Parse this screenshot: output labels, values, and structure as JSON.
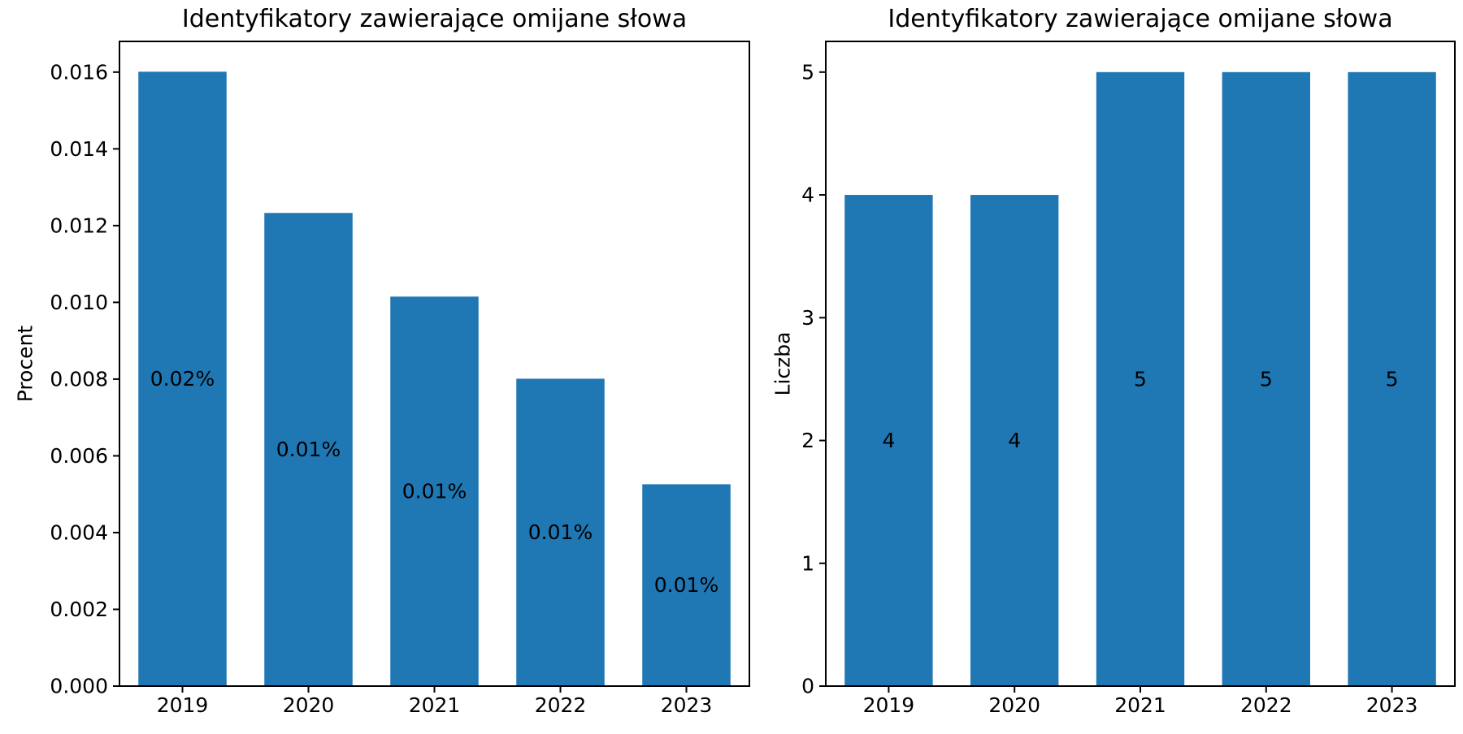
{
  "chart_data": [
    {
      "type": "bar",
      "title": "Identyfikatory zawierające omijane słowa",
      "xlabel": "",
      "ylabel": "Procent",
      "categories": [
        "2019",
        "2020",
        "2021",
        "2022",
        "2023"
      ],
      "values": [
        0.01601,
        0.01233,
        0.01015,
        0.00801,
        0.00526
      ],
      "bar_labels": [
        "0.02%",
        "0.01%",
        "0.01%",
        "0.01%",
        "0.01%"
      ],
      "ylim": [
        0,
        0.0168
      ],
      "yticks": [
        "0.000",
        "0.002",
        "0.004",
        "0.006",
        "0.008",
        "0.010",
        "0.012",
        "0.014",
        "0.016"
      ],
      "ytick_values": [
        0,
        0.002,
        0.004,
        0.006,
        0.008,
        0.01,
        0.012,
        0.014,
        0.016
      ],
      "bar_color": "#1f77b4",
      "grid": false
    },
    {
      "type": "bar",
      "title": "Identyfikatory zawierające omijane słowa",
      "xlabel": "",
      "ylabel": "Liczba",
      "categories": [
        "2019",
        "2020",
        "2021",
        "2022",
        "2023"
      ],
      "values": [
        4,
        4,
        5,
        5,
        5
      ],
      "bar_labels": [
        "4",
        "4",
        "5",
        "5",
        "5"
      ],
      "ylim": [
        0,
        5.25
      ],
      "yticks": [
        "0",
        "1",
        "2",
        "3",
        "4",
        "5"
      ],
      "ytick_values": [
        0,
        1,
        2,
        3,
        4,
        5
      ],
      "bar_color": "#1f77b4",
      "grid": false
    }
  ]
}
